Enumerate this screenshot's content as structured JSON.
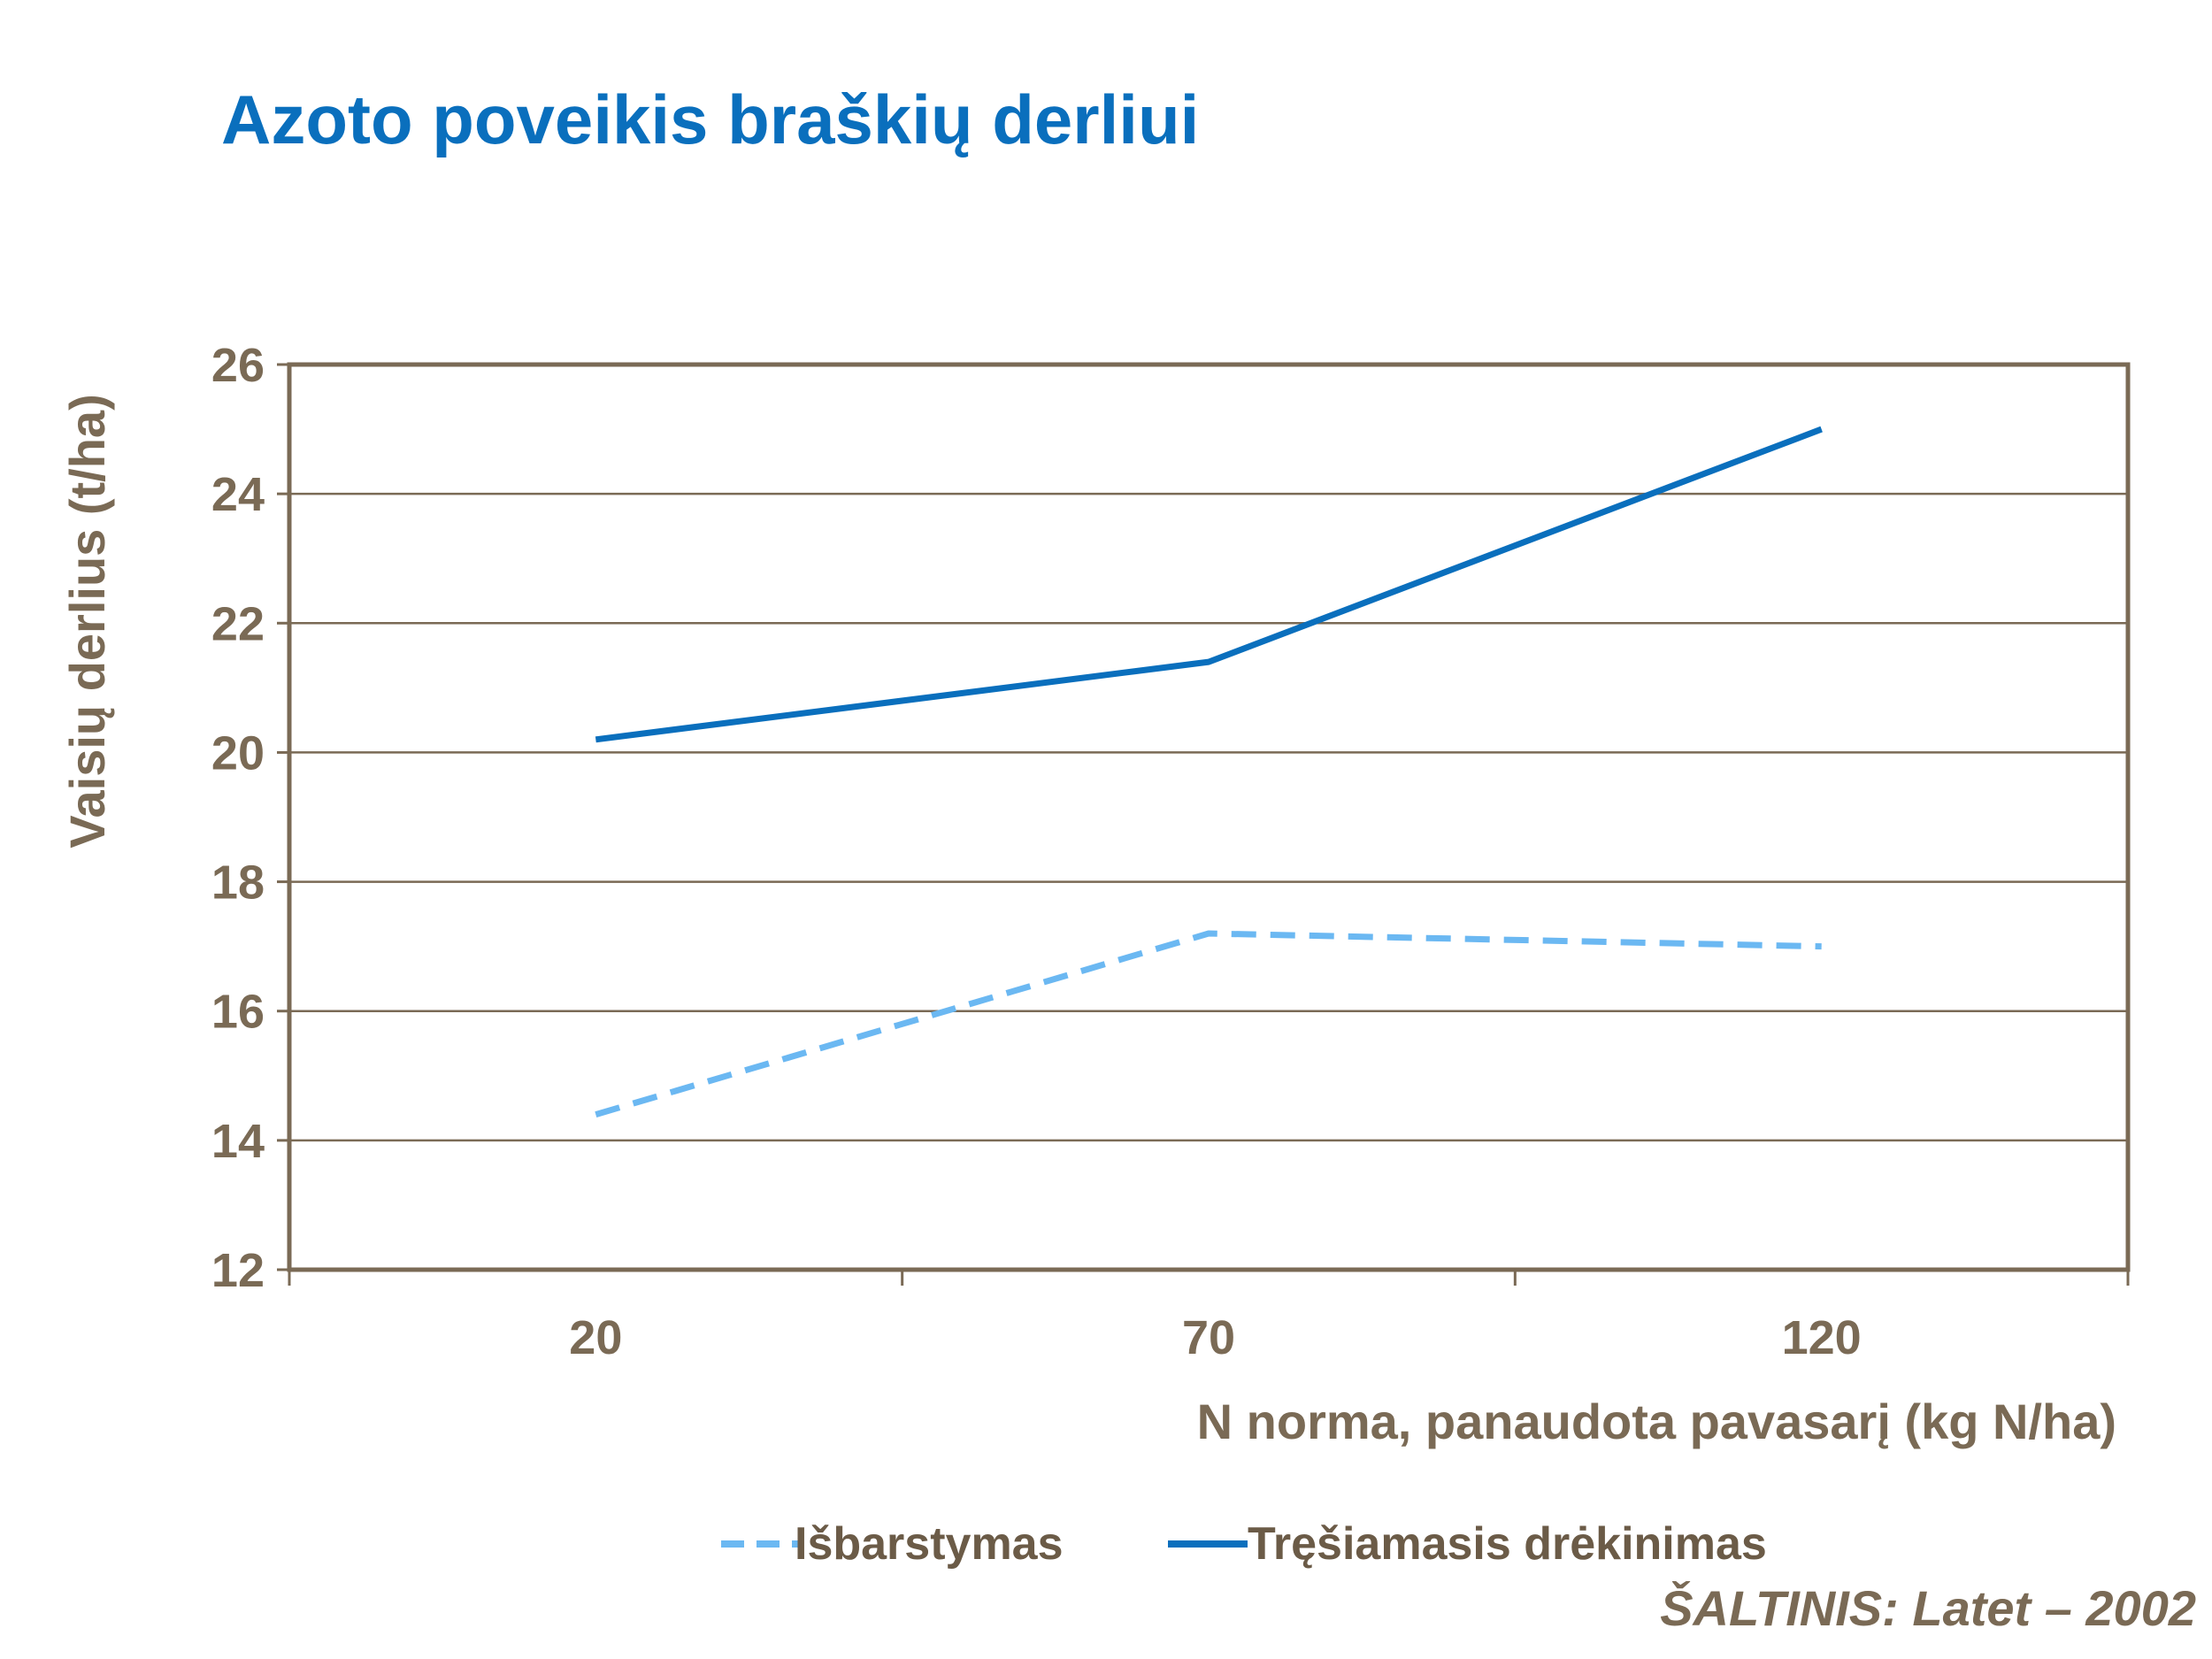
{
  "chart_data": {
    "type": "line",
    "title": "Azoto poveikis braškių derliui",
    "xlabel": "N norma, panaudota pavasarį (kg N/ha)",
    "ylabel": "Vaisių derlius (t/ha)",
    "categories": [
      "20",
      "70",
      "120"
    ],
    "ylim": [
      12,
      26
    ],
    "yticks": [
      "12",
      "14",
      "16",
      "18",
      "20",
      "22",
      "24",
      "26"
    ],
    "grid": true,
    "legend_position": "bottom",
    "series": [
      {
        "name": "Išbarstymas",
        "values": [
          14.4,
          17.2,
          17.0
        ],
        "color": "#6bb8f2",
        "style": "dashed"
      },
      {
        "name": "Tręšiamasis drėkinimas",
        "values": [
          20.2,
          21.4,
          25.0
        ],
        "color": "#0a6fbd",
        "style": "solid"
      }
    ]
  },
  "source": "ŠALTINIS:  Latet – 2002"
}
